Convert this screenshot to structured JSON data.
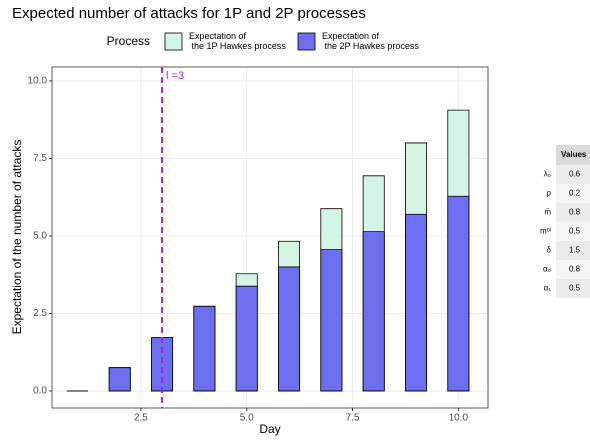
{
  "chart_data": {
    "type": "bar",
    "title": "Expected number of attacks for 1P and 2P processes",
    "x_label": "Day",
    "y_label": "Expectation of the number of attacks",
    "legend_title": "Process",
    "x": [
      1,
      2,
      3,
      4,
      5,
      6,
      7,
      8,
      9,
      10
    ],
    "series": [
      {
        "name": "Expectation of\n the 1P Hawkes process",
        "color": "#d4f5e4",
        "values": [
          0,
          0.75,
          1.72,
          2.73,
          3.78,
          4.83,
          5.88,
          6.94,
          8.0,
          9.06
        ]
      },
      {
        "name": "Expectation of\n the 2P Hawkes process",
        "color": "#6b6ff0",
        "values": [
          0,
          0.75,
          1.72,
          2.73,
          3.38,
          4.0,
          4.56,
          5.14,
          5.7,
          6.28
        ]
      }
    ],
    "xlim": [
      0.4,
      10.7
    ],
    "xticks": [
      2.5,
      {
        "value": 5,
        "label": "5.0"
      },
      7.5,
      {
        "value": 10,
        "label": "10.0"
      }
    ],
    "ylim": [
      -0.55,
      10.45
    ],
    "yticks": [
      {
        "value": 0,
        "label": "0.0"
      },
      2.5,
      {
        "value": 5,
        "label": "5.0"
      },
      7.5,
      {
        "value": 10,
        "label": "10.0"
      }
    ],
    "grid": true,
    "vline": {
      "value": 3,
      "label": "l =3",
      "color": "#a020f0"
    }
  },
  "parameters": {
    "header": "Values",
    "rows": [
      [
        "λ₀",
        "0.6"
      ],
      [
        "ρ",
        "0.2"
      ],
      [
        "m̄",
        "0.8"
      ],
      [
        "mᵇˡ",
        "0.5"
      ],
      [
        "δ",
        "1.5"
      ],
      [
        "α₀",
        "0.8"
      ],
      [
        "α₁",
        "0.5"
      ]
    ]
  }
}
